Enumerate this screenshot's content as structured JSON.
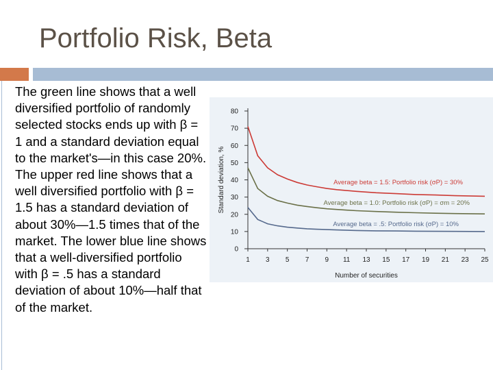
{
  "slide": {
    "title": "Portfolio Risk, Beta",
    "body": "The green line shows that a well diversified portfolio of randomly selected stocks ends up with β = 1 and a standard deviation equal to the market's—in this case 20%. The upper red line shows that a well diversified portfolio with β = 1.5 has a standard deviation of about 30%—1.5 times that of the market. The lower blue line shows that a well-diversified portfolio with β = .5 has a standard deviation of about 10%—half that of the market."
  },
  "colors": {
    "accent_orange": "#d3794a",
    "accent_blue": "#a7bcd4",
    "chart_bg": "#edf2f7",
    "red": "#cc3a35",
    "green": "#6a7048",
    "blue": "#55698c"
  },
  "chart_data": {
    "type": "line",
    "xlabel": "Number of securities",
    "ylabel": "Standard deviation, %",
    "xlim": [
      1,
      25
    ],
    "ylim": [
      0,
      80
    ],
    "xticks": [
      1,
      3,
      5,
      7,
      9,
      11,
      13,
      15,
      17,
      19,
      21,
      23,
      25
    ],
    "yticks": [
      0,
      10,
      20,
      30,
      40,
      50,
      60,
      70,
      80
    ],
    "grid": false,
    "series": [
      {
        "name": "Average beta = 1.5: Portfolio risk (σP) = 30%",
        "color": "#cc3a35",
        "x": [
          1,
          2,
          3,
          4,
          5,
          6,
          7,
          8,
          9,
          10,
          12,
          14,
          16,
          18,
          20,
          22,
          25
        ],
        "y": [
          71,
          54,
          47,
          43,
          40.5,
          38.5,
          37,
          36,
          35,
          34.3,
          33.3,
          32.5,
          32,
          31.5,
          31.2,
          30.8,
          30.5
        ]
      },
      {
        "name": "Average beta = 1.0: Portfolio risk (σP) = σm = 20%",
        "color": "#6a7048",
        "x": [
          1,
          2,
          3,
          4,
          5,
          6,
          7,
          8,
          9,
          10,
          12,
          14,
          16,
          18,
          20,
          22,
          25
        ],
        "y": [
          47,
          35,
          30.5,
          28,
          26.5,
          25.3,
          24.5,
          23.8,
          23.2,
          22.8,
          22.1,
          21.6,
          21.2,
          20.9,
          20.6,
          20.4,
          20.2
        ]
      },
      {
        "name": "Average beta = .5: Portfolio risk (σP) = 10%",
        "color": "#55698c",
        "x": [
          1,
          2,
          3,
          4,
          5,
          6,
          7,
          8,
          9,
          10,
          12,
          14,
          16,
          18,
          20,
          22,
          25
        ],
        "y": [
          24,
          17,
          14.5,
          13.3,
          12.5,
          12,
          11.6,
          11.3,
          11.1,
          10.9,
          10.6,
          10.4,
          10.3,
          10.2,
          10.1,
          10.05,
          10
        ]
      }
    ],
    "annotations": [
      "Average beta = 1.5: Portfolio risk (σP) = 30%",
      "Average beta = 1.0: Portfolio risk (σP) = σm = 20%",
      "Average beta = .5: Portfolio risk (σP) = 10%"
    ]
  }
}
